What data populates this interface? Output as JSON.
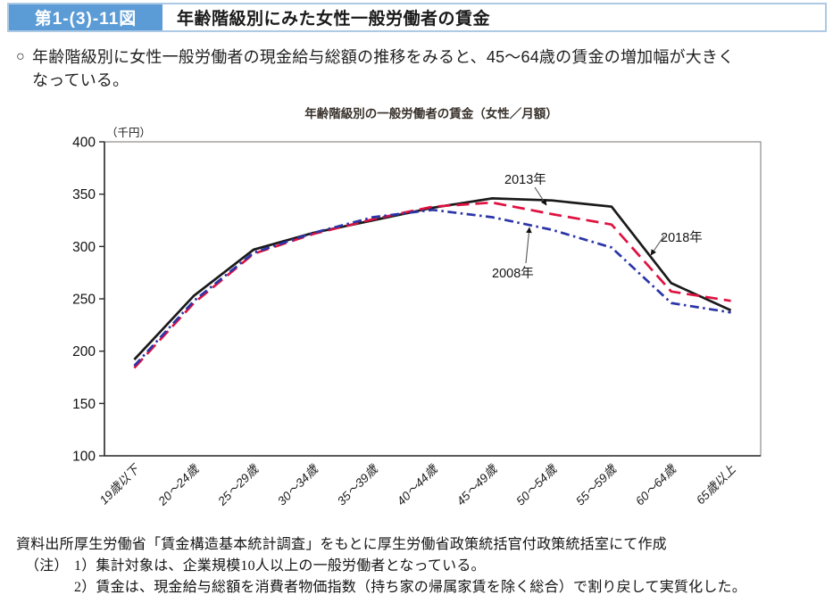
{
  "header": {
    "figure_label": "第1-(3)-11図",
    "title": "年齢階級別にみた女性一般労働者の賃金"
  },
  "summary": {
    "marker": "○",
    "lines": [
      "年齢階級別に女性一般労働者の現金給与総額の推移をみると、45～64歳の賃金の増加幅が大きく",
      "なっている。"
    ]
  },
  "chart_data": {
    "type": "line",
    "title": "年齢階級別の一般労働者の賃金（女性／月額）",
    "unit_label": "（千円）",
    "ylabel": "千円",
    "ylim": [
      100,
      400
    ],
    "yticks": [
      100,
      150,
      200,
      250,
      300,
      350,
      400
    ],
    "grid": false,
    "legend_position": "inline-arrow-annotations",
    "categories": [
      "19歳以下",
      "20～24歳",
      "25～29歳",
      "30～34歳",
      "35～39歳",
      "40～44歳",
      "45～49歳",
      "50～54歳",
      "55～59歳",
      "60～64歳",
      "65歳以上"
    ],
    "series": [
      {
        "name": "2018年",
        "key": "s2018",
        "color": "#1a1a1a",
        "style": "solid",
        "values": [
          192,
          253,
          297,
          313,
          325,
          337,
          346,
          344,
          338,
          265,
          239
        ]
      },
      {
        "name": "2013年",
        "key": "s2013",
        "color": "#df1140",
        "style": "dashed",
        "values": [
          184,
          246,
          293,
          312,
          326,
          338,
          342,
          331,
          321,
          257,
          248
        ]
      },
      {
        "name": "2008年",
        "key": "s2008",
        "color": "#2b35a8",
        "style": "dashdot",
        "values": [
          186,
          248,
          294,
          313,
          328,
          335,
          328,
          316,
          299,
          246,
          237
        ]
      }
    ],
    "annotations": [
      {
        "label": "2013年",
        "series": "s2013"
      },
      {
        "label": "2018年",
        "series": "s2018"
      },
      {
        "label": "2008年",
        "series": "s2008"
      }
    ]
  },
  "footer": {
    "source_label": "資料出所",
    "source_text": "厚生労働省「賃金構造基本統計調査」をもとに厚生労働省政策統括官付政策統括室にて作成",
    "note_label": "（注）",
    "notes": [
      "1）集計対象は、企業規模10人以上の一般労働者となっている。",
      "2）賃金は、現金給与総額を消費者物価指数（持ち家の帰属家賃を除く総合）で割り戻して実質化した。"
    ]
  },
  "colors": {
    "badge_blue": "#5b9cd6",
    "border_blue": "#adc9e4",
    "line_2018": "#1a1a1a",
    "line_2013": "#df1140",
    "line_2008": "#2b35a8",
    "plot_border": "#8f8a85",
    "axis": "#2b2b2b"
  }
}
